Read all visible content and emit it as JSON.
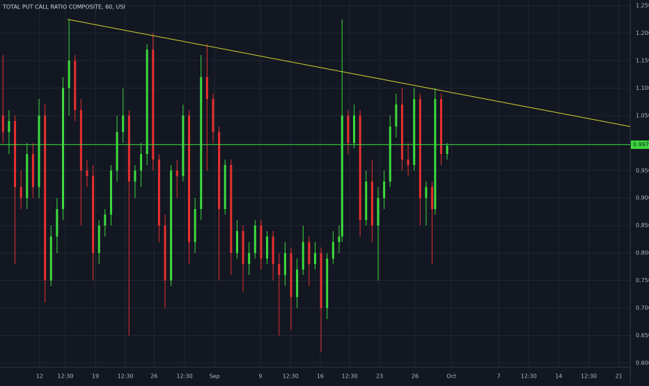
{
  "chart_data": {
    "type": "candlestick",
    "title": "TOTAL PUT CALL RATIO COMPOSITE, 60, USI",
    "up_color": "#3ddc3d",
    "down_color": "#e8302f",
    "grid": true,
    "xlim": [
      0,
      210
    ],
    "ylim": [
      0.6,
      1.25
    ],
    "xticks": [
      {
        "value": 13.2,
        "label": "12"
      },
      {
        "value": 21.8,
        "label": "12:30"
      },
      {
        "value": 31.8,
        "label": "19"
      },
      {
        "value": 41.8,
        "label": "12:30"
      },
      {
        "value": 51.3,
        "label": "26"
      },
      {
        "value": 61.5,
        "label": "12:30"
      },
      {
        "value": 71.5,
        "label": "Sep"
      },
      {
        "value": 86.8,
        "label": "9"
      },
      {
        "value": 96.8,
        "label": "12:30"
      },
      {
        "value": 106.7,
        "label": "16"
      },
      {
        "value": 116.5,
        "label": "12:30"
      },
      {
        "value": 126.5,
        "label": "23"
      },
      {
        "value": 138.3,
        "label": "26"
      },
      {
        "value": 150.4,
        "label": "Oct"
      },
      {
        "value": 166.2,
        "label": "7"
      },
      {
        "value": 176.2,
        "label": "12:30"
      },
      {
        "value": 186.2,
        "label": "14"
      },
      {
        "value": 196.2,
        "label": "12:30"
      },
      {
        "value": 206.2,
        "label": "21"
      }
    ],
    "yticks": [
      {
        "value": 0.6,
        "label": "0.600"
      },
      {
        "value": 0.65,
        "label": "0.650"
      },
      {
        "value": 0.7,
        "label": "0.700"
      },
      {
        "value": 0.75,
        "label": "0.750"
      },
      {
        "value": 0.8,
        "label": "0.800"
      },
      {
        "value": 0.85,
        "label": "0.850"
      },
      {
        "value": 0.9,
        "label": "0.900"
      },
      {
        "value": 0.95,
        "label": "0.950"
      },
      {
        "value": 1.0,
        "label": "1.000"
      },
      {
        "value": 1.05,
        "label": "1.050"
      },
      {
        "value": 1.1,
        "label": "1.100"
      },
      {
        "value": 1.15,
        "label": "1.150"
      },
      {
        "value": 1.2,
        "label": "1.200"
      },
      {
        "value": 1.25,
        "label": "1.250"
      }
    ],
    "x": [
      1,
      3,
      5,
      7,
      9,
      11,
      13,
      15,
      17,
      19,
      21,
      23,
      25,
      27,
      29,
      31,
      33,
      35,
      37,
      39,
      41,
      43,
      45,
      47,
      49,
      51,
      53,
      55,
      57,
      59,
      61,
      63,
      65,
      67,
      69,
      71,
      73,
      75,
      77,
      79,
      81,
      83,
      85,
      87,
      89,
      91,
      93,
      95,
      97,
      99,
      101,
      103,
      105,
      107,
      109,
      111,
      113,
      114,
      116,
      118,
      120,
      122,
      124,
      126,
      128,
      130,
      132,
      134,
      136,
      138,
      140,
      142,
      144,
      145,
      147,
      149
    ],
    "open": [
      1.05,
      1.02,
      1.04,
      0.92,
      0.9,
      0.98,
      0.92,
      1.05,
      0.75,
      0.83,
      0.88,
      1.1,
      1.15,
      1.06,
      0.95,
      0.94,
      0.8,
      0.85,
      0.87,
      0.95,
      1.02,
      1.05,
      0.93,
      0.95,
      0.98,
      1.17,
      0.97,
      0.85,
      0.75,
      0.95,
      0.94,
      1.05,
      0.82,
      0.88,
      1.12,
      1.08,
      1.02,
      0.88,
      0.96,
      0.8,
      0.84,
      0.78,
      0.8,
      0.85,
      0.79,
      0.83,
      0.78,
      0.76,
      0.8,
      0.72,
      0.77,
      0.82,
      0.78,
      0.8,
      0.7,
      0.79,
      0.82,
      0.83,
      1.05,
      1.0,
      1.05,
      0.86,
      0.93,
      0.85,
      0.9,
      0.93,
      1.03,
      1.07,
      0.97,
      0.96,
      1.08,
      0.9,
      0.92,
      0.88,
      1.08,
      0.98
    ],
    "high": [
      1.16,
      1.06,
      1.05,
      0.95,
      1.0,
      1.0,
      1.08,
      1.07,
      0.85,
      0.9,
      1.12,
      1.225,
      1.16,
      1.08,
      0.97,
      0.96,
      0.86,
      0.88,
      0.96,
      1.05,
      1.1,
      1.06,
      0.96,
      1.0,
      1.18,
      1.2,
      0.98,
      0.87,
      0.96,
      0.97,
      1.07,
      1.06,
      0.9,
      1.16,
      1.18,
      1.09,
      1.03,
      0.97,
      0.97,
      0.86,
      0.85,
      0.82,
      0.86,
      0.86,
      0.84,
      0.84,
      0.8,
      0.82,
      0.81,
      0.79,
      0.85,
      0.83,
      0.82,
      0.81,
      0.8,
      0.84,
      0.85,
      1.225,
      1.06,
      1.07,
      1.06,
      0.95,
      0.97,
      0.92,
      0.95,
      1.05,
      1.09,
      1.1,
      1.0,
      1.1,
      1.09,
      0.93,
      0.93,
      1.1,
      1.09,
      1.0
    ],
    "low": [
      1.0,
      0.98,
      0.78,
      0.88,
      0.88,
      0.9,
      0.9,
      0.71,
      0.74,
      0.8,
      0.86,
      1.05,
      1.04,
      0.85,
      0.92,
      0.75,
      0.78,
      0.83,
      0.85,
      0.93,
      1.0,
      0.65,
      0.9,
      0.92,
      0.96,
      0.95,
      0.82,
      0.7,
      0.74,
      0.9,
      0.93,
      0.78,
      0.8,
      0.86,
      0.95,
      1.0,
      0.75,
      0.87,
      0.76,
      0.79,
      0.73,
      0.76,
      0.79,
      0.77,
      0.78,
      0.75,
      0.65,
      0.74,
      0.66,
      0.7,
      0.76,
      0.74,
      0.77,
      0.62,
      0.68,
      0.78,
      0.8,
      0.82,
      0.98,
      0.99,
      0.83,
      0.85,
      0.82,
      0.75,
      0.88,
      0.92,
      1.01,
      0.95,
      0.94,
      0.95,
      0.85,
      0.85,
      0.78,
      0.87,
      0.96,
      0.97
    ],
    "close": [
      1.02,
      1.04,
      0.92,
      0.9,
      0.98,
      0.92,
      1.05,
      0.75,
      0.83,
      0.88,
      1.1,
      1.15,
      1.06,
      0.95,
      0.94,
      0.8,
      0.85,
      0.87,
      0.95,
      1.02,
      1.05,
      0.93,
      0.95,
      0.98,
      1.17,
      0.97,
      0.85,
      0.75,
      0.95,
      0.94,
      1.05,
      0.82,
      0.88,
      1.12,
      1.08,
      1.02,
      0.88,
      0.96,
      0.8,
      0.84,
      0.78,
      0.8,
      0.85,
      0.79,
      0.83,
      0.78,
      0.76,
      0.8,
      0.72,
      0.77,
      0.82,
      0.78,
      0.8,
      0.7,
      0.79,
      0.82,
      0.83,
      1.05,
      1.0,
      1.05,
      0.86,
      0.93,
      0.85,
      0.9,
      0.93,
      1.03,
      1.07,
      0.97,
      0.96,
      1.08,
      0.9,
      0.92,
      0.88,
      1.08,
      0.98,
      0.995
    ],
    "trendline": {
      "color": "#d8d832",
      "x": [
        22.5,
        210
      ],
      "values": [
        1.225,
        1.03
      ]
    },
    "price_line": {
      "color": "#3ddc3d",
      "value": 0.997
    }
  }
}
